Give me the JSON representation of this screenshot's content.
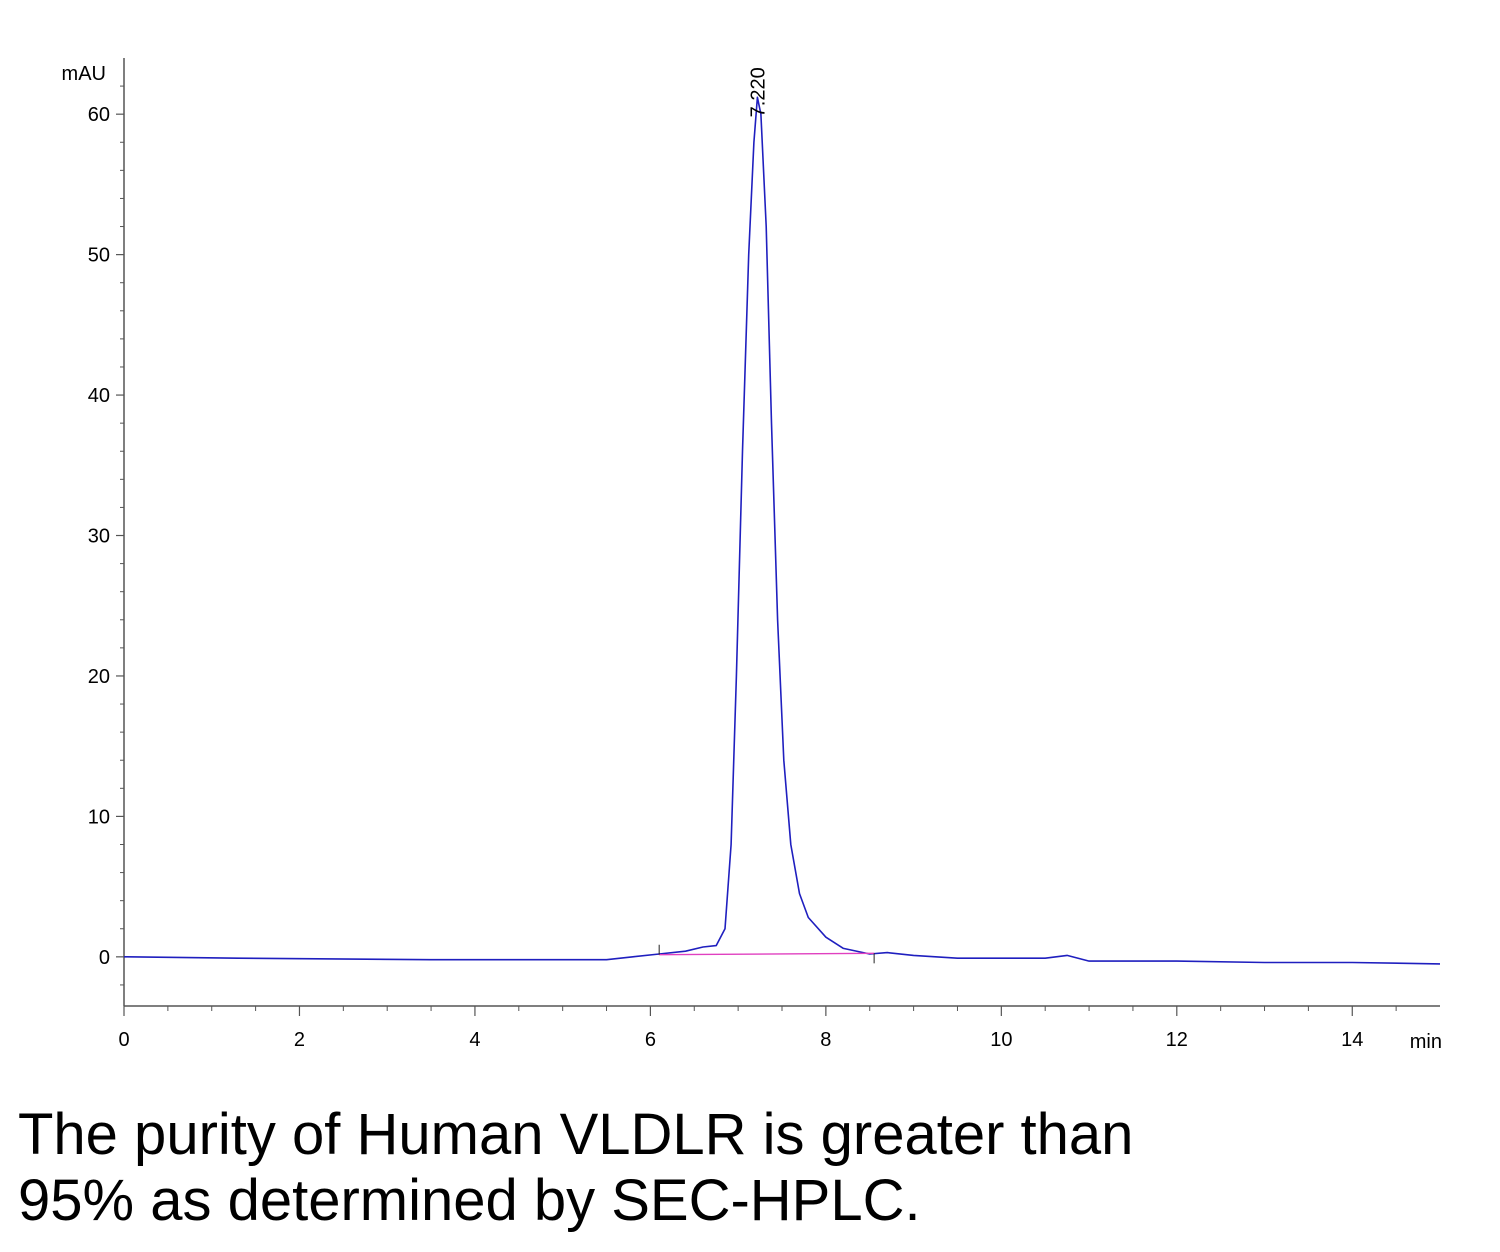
{
  "chart_data": {
    "type": "line",
    "title": "",
    "xlabel": "min",
    "ylabel": "mAU",
    "xlim": [
      0,
      15
    ],
    "ylim": [
      -3.5,
      64
    ],
    "x_ticks": [
      0,
      2,
      4,
      6,
      8,
      10,
      12,
      14
    ],
    "y_ticks": [
      0,
      10,
      20,
      30,
      40,
      50,
      60
    ],
    "grid": false,
    "series": [
      {
        "color": "#1f1fbf",
        "x": [
          0,
          1.3,
          3.5,
          5.5,
          5.8,
          6.1,
          6.4,
          6.6,
          6.75,
          6.85,
          6.92,
          6.98,
          7.05,
          7.12,
          7.18,
          7.22,
          7.26,
          7.32,
          7.38,
          7.45,
          7.52,
          7.6,
          7.7,
          7.8,
          8.0,
          8.2,
          8.5,
          8.7,
          9.0,
          9.5,
          10.0,
          10.5,
          10.75,
          11.0,
          11.5,
          12.0,
          13.0,
          14.0,
          15.0
        ],
        "y": [
          0,
          -0.1,
          -0.2,
          -0.2,
          0.0,
          0.2,
          0.4,
          0.7,
          0.8,
          2.0,
          8.0,
          20.0,
          36.0,
          50.0,
          58.0,
          61.2,
          60.0,
          52.0,
          38.0,
          24.0,
          14.0,
          8.0,
          4.5,
          2.8,
          1.4,
          0.6,
          0.2,
          0.3,
          0.1,
          -0.1,
          -0.1,
          -0.1,
          0.1,
          -0.3,
          -0.3,
          -0.3,
          -0.4,
          -0.4,
          -0.5
        ]
      },
      {
        "color": "#e040c0",
        "x": [
          6.1,
          8.55
        ],
        "y": [
          0.15,
          0.25
        ]
      }
    ],
    "annotations": [
      {
        "text": "7.220",
        "x": 7.22,
        "y": 61.2
      }
    ]
  },
  "caption": {
    "line1": "The purity of Human VLDLR is greater than",
    "line2": "95% as determined by SEC-HPLC."
  }
}
